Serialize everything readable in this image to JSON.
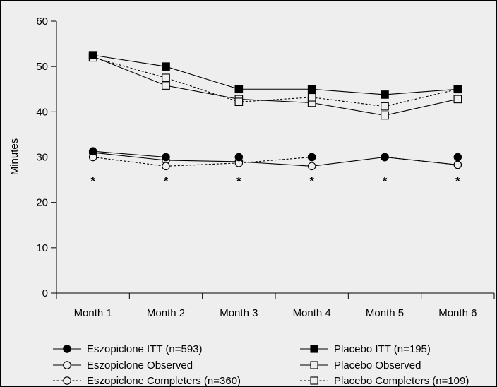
{
  "chart_data": {
    "type": "line",
    "title": "",
    "xlabel": "",
    "ylabel": "Minutes",
    "categories": [
      "Month 1",
      "Month 2",
      "Month 3",
      "Month 4",
      "Month 5",
      "Month 6"
    ],
    "ylim": [
      0,
      60
    ],
    "yticks": [
      0,
      10,
      20,
      30,
      40,
      50,
      60
    ],
    "grid": false,
    "legend_position": "bottom",
    "series": [
      {
        "name": "Eszopiclone ITT (n=593)",
        "values": [
          31.3,
          30.0,
          30.0,
          30.0,
          30.0,
          30.0
        ],
        "marker": "circle",
        "filled": true,
        "dashed": false
      },
      {
        "name": "Eszopiclone Observed",
        "values": [
          31.0,
          29.3,
          29.0,
          28.0,
          30.0,
          28.3
        ],
        "marker": "circle",
        "filled": false,
        "dashed": false
      },
      {
        "name": "Eszopiclone Completers (n=360)",
        "values": [
          30.0,
          28.0,
          28.7,
          30.0,
          30.0,
          28.3
        ],
        "marker": "circle",
        "filled": false,
        "dashed": true
      },
      {
        "name": "Placebo ITT (n=195)",
        "values": [
          52.5,
          50.0,
          45.0,
          45.0,
          43.8,
          45.0
        ],
        "marker": "square",
        "filled": true,
        "dashed": false
      },
      {
        "name": "Placebo Observed",
        "values": [
          52.2,
          45.8,
          42.8,
          42.0,
          39.2,
          42.8
        ],
        "marker": "square",
        "filled": false,
        "dashed": false
      },
      {
        "name": "Placebo Completers (n=109)",
        "values": [
          52.0,
          47.5,
          42.2,
          43.2,
          41.2,
          45.0
        ],
        "marker": "square",
        "filled": false,
        "dashed": true
      }
    ],
    "annotations": [
      {
        "text": "*",
        "category": "Month 1"
      },
      {
        "text": "*",
        "category": "Month 2"
      },
      {
        "text": "*",
        "category": "Month 3"
      },
      {
        "text": "*",
        "category": "Month 4"
      },
      {
        "text": "*",
        "category": "Month 5"
      },
      {
        "text": "*",
        "category": "Month 6"
      }
    ]
  }
}
